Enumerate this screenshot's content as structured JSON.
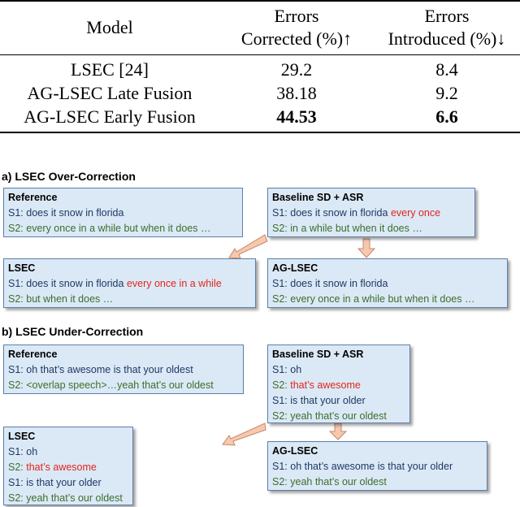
{
  "table": {
    "headers": {
      "model": "Model",
      "corrected_line1": "Errors",
      "corrected_line2": "Corrected (%)↑",
      "introduced_line1": "Errors",
      "introduced_line2": "Introduced (%)↓"
    },
    "rows": [
      {
        "model": "LSEC [24]",
        "corrected": "29.2",
        "introduced": "8.4"
      },
      {
        "model": "AG-LSEC Late Fusion",
        "corrected": "38.18",
        "introduced": "9.2"
      },
      {
        "model": "AG-LSEC Early Fusion",
        "corrected": "44.53",
        "introduced": "6.6"
      }
    ]
  },
  "figure": {
    "section_a": {
      "title": "a) LSEC Over-Correction",
      "reference": {
        "title": "Reference",
        "s1_label": "S1:",
        "s1_text": "does it snow in florida",
        "s2_label": "S2:",
        "s2_text": "every once in a while but when it does …"
      },
      "baseline": {
        "title": "Baseline SD + ASR",
        "s1_label": "S1:",
        "s1_text": "does it snow in florida",
        "s1_red": "every once",
        "s2_label": "S2:",
        "s2_text": "in a while but when it does …"
      },
      "lsec": {
        "title": "LSEC",
        "s1_label": "S1:",
        "s1_text": "does it snow in florida",
        "s1_red": "every once in a while",
        "s2_label": "S2:",
        "s2_text": "but when it does …"
      },
      "aglsec": {
        "title": "AG-LSEC",
        "s1_label": "S1:",
        "s1_text": "does it snow in florida",
        "s2_label": "S2:",
        "s2_text": "every once in a while but when it does …"
      }
    },
    "section_b": {
      "title": "b) LSEC Under-Correction",
      "reference": {
        "title": "Reference",
        "s1_label": "S1:",
        "s1_text": "oh that’s awesome is that your oldest",
        "s2_label": "S2:",
        "s2_text": "<overlap speech>…yeah that’s our oldest"
      },
      "baseline": {
        "title": "Baseline SD + ASR",
        "l1_label": "S1:",
        "l1_text": "oh",
        "l2_label": "S2:",
        "l2_text": "that’s awesome",
        "l3_label": "S1:",
        "l3_text": "is that your older",
        "l4_label": "S2:",
        "l4_text": "yeah that’s our oldest"
      },
      "lsec": {
        "title": "LSEC",
        "l1_label": "S1:",
        "l1_text": "oh",
        "l2_label": "S2:",
        "l2_text": "that’s awesome",
        "l3_label": "S1:",
        "l3_text": "is that your older",
        "l4_label": "S2:",
        "l4_text": "yeah that’s our oldest"
      },
      "aglsec": {
        "title": "AG-LSEC",
        "s1_label": "S1:",
        "s1_text": "oh that’s awesome is that your older",
        "s2_label": "S2:",
        "s2_text": "yeah that’s our oldest"
      }
    },
    "colors": {
      "box_fill": "#dbe9f6",
      "box_border": "#5a7fa8",
      "speaker1_text": "#1f3864",
      "speaker2_text": "#3c6e2c",
      "error_text": "#e2261c",
      "arrow_fill": "#f6c9ae",
      "arrow_stroke": "#c9866a"
    }
  }
}
